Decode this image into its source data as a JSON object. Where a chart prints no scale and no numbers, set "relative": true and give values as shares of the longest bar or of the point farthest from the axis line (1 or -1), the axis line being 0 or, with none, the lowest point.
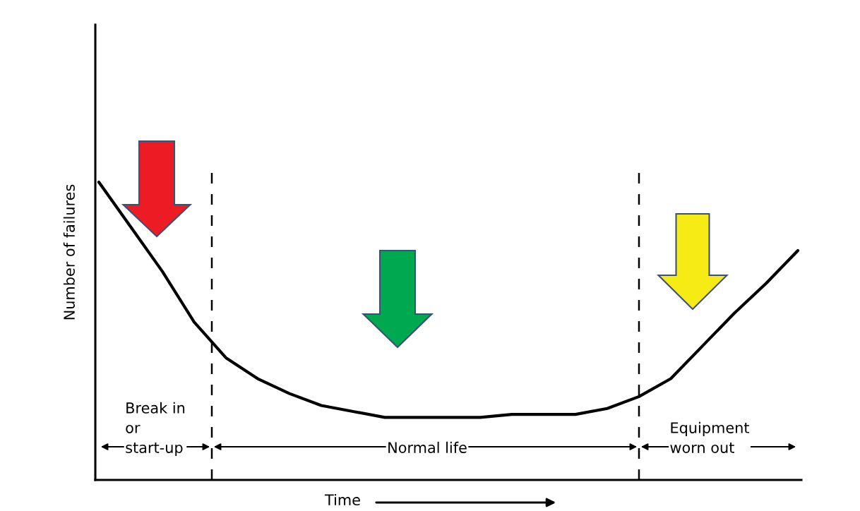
{
  "chart_data": {
    "type": "line",
    "relative": true,
    "ylabel": "Number of failures",
    "xlabel": "Time",
    "categories": [
      null,
      null,
      null,
      null,
      null,
      null,
      null,
      null,
      null,
      null,
      null,
      null,
      null,
      null,
      null,
      null,
      null,
      null,
      null,
      null,
      null,
      null,
      null
    ],
    "series": [
      {
        "color": "#000000",
        "values": [
          1,
          0.85,
          0.7,
          0.53,
          0.41,
          0.34,
          0.29,
          0.25,
          0.23,
          0.21,
          0.21,
          0.21,
          0.21,
          0.22,
          0.22,
          0.22,
          0.24,
          0.28,
          0.34,
          0.45,
          0.56,
          0.66,
          0.77
        ]
      }
    ],
    "annotations": [
      "Break in\nor\nstart-up",
      "Normal life",
      "Equipment\nworn out"
    ],
    "tick_labels": false
  }
}
